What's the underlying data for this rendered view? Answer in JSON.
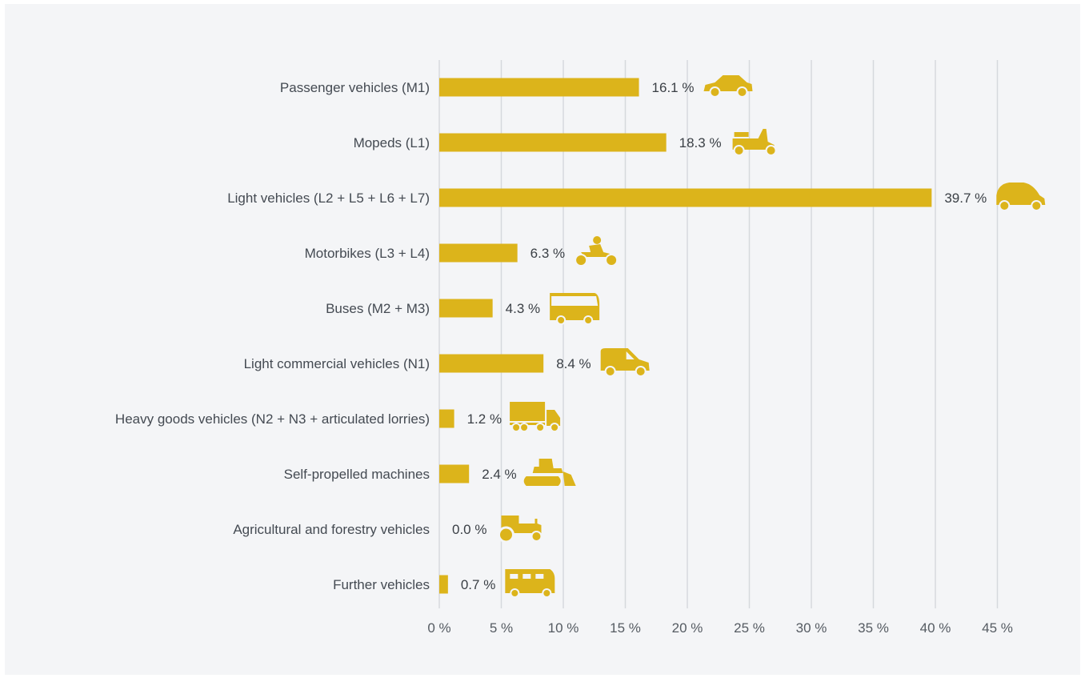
{
  "colors": {
    "bar": "#dcb41b",
    "icon": "#dcb41b",
    "grid": "#d6d9dd",
    "background": "#f4f5f7"
  },
  "chart_data": {
    "type": "bar",
    "orientation": "horizontal",
    "categories": [
      "Passenger vehicles (M1)",
      "Mopeds (L1)",
      "Light vehicles (L2 + L5 + L6 + L7)",
      "Motorbikes (L3 + L4)",
      "Buses (M2 + M3)",
      "Light commercial vehicles (N1)",
      "Heavy goods vehicles (N2 + N3 + articulated lorries)",
      "Self-propelled machines",
      "Agricultural and forestry vehicles",
      "Further vehicles"
    ],
    "values": [
      16.1,
      18.3,
      39.7,
      6.3,
      4.3,
      8.4,
      1.2,
      2.4,
      0.0,
      0.7
    ],
    "value_labels": [
      "16.1 %",
      "18.3 %",
      "39.7 %",
      "6.3 %",
      "4.3 %",
      "8.4 %",
      "1.2 %",
      "2.4 %",
      "0.0 %",
      "0.7 %"
    ],
    "icons": [
      "car-icon",
      "scooter-icon",
      "microcar-icon",
      "motorbike-icon",
      "bus-icon",
      "van-icon",
      "truck-icon",
      "bulldozer-icon",
      "tractor-icon",
      "camper-icon"
    ],
    "x_ticks": [
      0,
      5,
      10,
      15,
      20,
      25,
      30,
      35,
      40,
      45
    ],
    "x_tick_labels": [
      "0 %",
      "5 %",
      "10 %",
      "15 %",
      "20 %",
      "25 %",
      "30 %",
      "35 %",
      "40 %",
      "45 %"
    ],
    "xlim": [
      0,
      45
    ],
    "grid": true,
    "legend": "none"
  }
}
